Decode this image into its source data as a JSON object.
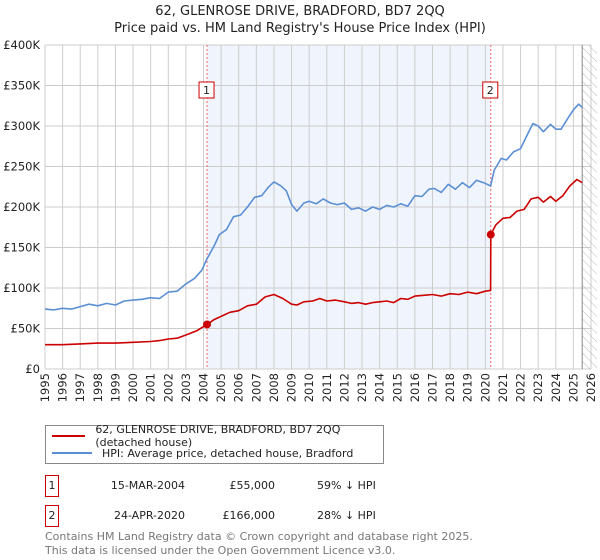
{
  "chart_data": {
    "type": "line",
    "title": "62, GLENROSE DRIVE, BRADFORD, BD7 2QQ",
    "subtitle": "Price paid vs. HM Land Registry's House Price Index (HPI)",
    "xlabel": "",
    "ylabel": "",
    "xlim": [
      1995,
      2026
    ],
    "ylim": [
      0,
      400000
    ],
    "x_ticks": [
      "1995",
      "1996",
      "1997",
      "1998",
      "1999",
      "2000",
      "2001",
      "2002",
      "2003",
      "2004",
      "2005",
      "2006",
      "2007",
      "2008",
      "2009",
      "2010",
      "2011",
      "2012",
      "2013",
      "2014",
      "2015",
      "2016",
      "2017",
      "2018",
      "2019",
      "2020",
      "2021",
      "2022",
      "2023",
      "2024",
      "2025",
      "2026"
    ],
    "y_ticks": [
      {
        "v": 0,
        "label": "£0"
      },
      {
        "v": 50000,
        "label": "£50K"
      },
      {
        "v": 100000,
        "label": "£100K"
      },
      {
        "v": 150000,
        "label": "£150K"
      },
      {
        "v": 200000,
        "label": "£200K"
      },
      {
        "v": 250000,
        "label": "£250K"
      },
      {
        "v": 300000,
        "label": "£300K"
      },
      {
        "v": 350000,
        "label": "£350K"
      },
      {
        "v": 400000,
        "label": "£400K"
      }
    ],
    "grid": true,
    "shaded_range": [
      2004.2,
      2020.31
    ],
    "forecast_hatch_from": 2025.5,
    "series": [
      {
        "name": "62, GLENROSE DRIVE, BRADFORD, BD7 2QQ (detached house)",
        "color": "#cc0000",
        "points": [
          [
            1995,
            30
          ],
          [
            1996,
            30
          ],
          [
            1997,
            31
          ],
          [
            1998,
            32
          ],
          [
            1999,
            32
          ],
          [
            2000,
            33
          ],
          [
            2001,
            34
          ],
          [
            2001.5,
            35
          ],
          [
            2002,
            37
          ],
          [
            2002.5,
            38
          ],
          [
            2003,
            42
          ],
          [
            2003.6,
            47
          ],
          [
            2004.2,
            55
          ],
          [
            2004.6,
            61
          ],
          [
            2005,
            65
          ],
          [
            2005.5,
            70
          ],
          [
            2006,
            72
          ],
          [
            2006.5,
            78
          ],
          [
            2007,
            80
          ],
          [
            2007.5,
            89
          ],
          [
            2008,
            92
          ],
          [
            2008.5,
            87
          ],
          [
            2009,
            80
          ],
          [
            2009.3,
            79
          ],
          [
            2009.7,
            83
          ],
          [
            2010.2,
            84
          ],
          [
            2010.6,
            87
          ],
          [
            2011,
            84
          ],
          [
            2011.5,
            85
          ],
          [
            2012,
            83
          ],
          [
            2012.4,
            81
          ],
          [
            2012.8,
            82
          ],
          [
            2013.2,
            80
          ],
          [
            2013.6,
            82
          ],
          [
            2014,
            83
          ],
          [
            2014.4,
            84
          ],
          [
            2014.8,
            82
          ],
          [
            2015.2,
            87
          ],
          [
            2015.6,
            86
          ],
          [
            2016,
            90
          ],
          [
            2016.5,
            91
          ],
          [
            2017,
            92
          ],
          [
            2017.5,
            90
          ],
          [
            2018,
            93
          ],
          [
            2018.5,
            92
          ],
          [
            2019,
            95
          ],
          [
            2019.5,
            93
          ],
          [
            2020,
            96
          ],
          [
            2020.3,
            97
          ],
          [
            2020.31,
            166
          ],
          [
            2020.6,
            178
          ],
          [
            2021,
            186
          ],
          [
            2021.4,
            187
          ],
          [
            2021.8,
            195
          ],
          [
            2022.2,
            197
          ],
          [
            2022.6,
            210
          ],
          [
            2023,
            212
          ],
          [
            2023.3,
            206
          ],
          [
            2023.7,
            213
          ],
          [
            2024,
            207
          ],
          [
            2024.4,
            214
          ],
          [
            2024.8,
            226
          ],
          [
            2025.2,
            234
          ],
          [
            2025.5,
            230
          ]
        ]
      },
      {
        "name": "HPI: Average price, detached house, Bradford",
        "color": "#5b8fd4",
        "points": [
          [
            1995,
            74
          ],
          [
            1995.5,
            73
          ],
          [
            1996,
            75
          ],
          [
            1996.5,
            74
          ],
          [
            1997,
            77
          ],
          [
            1997.5,
            80
          ],
          [
            1998,
            78
          ],
          [
            1998.5,
            81
          ],
          [
            1999,
            79
          ],
          [
            1999.5,
            84
          ],
          [
            2000,
            85
          ],
          [
            2000.5,
            86
          ],
          [
            2001,
            88
          ],
          [
            2001.5,
            87
          ],
          [
            2002,
            95
          ],
          [
            2002.5,
            96
          ],
          [
            2003,
            105
          ],
          [
            2003.5,
            112
          ],
          [
            2003.9,
            122
          ],
          [
            2004.2,
            136
          ],
          [
            2004.6,
            152
          ],
          [
            2004.9,
            166
          ],
          [
            2005.3,
            172
          ],
          [
            2005.7,
            188
          ],
          [
            2006.1,
            190
          ],
          [
            2006.5,
            200
          ],
          [
            2006.9,
            212
          ],
          [
            2007.3,
            214
          ],
          [
            2007.7,
            225
          ],
          [
            2008,
            231
          ],
          [
            2008.4,
            226
          ],
          [
            2008.7,
            220
          ],
          [
            2009,
            203
          ],
          [
            2009.3,
            195
          ],
          [
            2009.7,
            205
          ],
          [
            2010,
            207
          ],
          [
            2010.4,
            204
          ],
          [
            2010.8,
            210
          ],
          [
            2011.2,
            205
          ],
          [
            2011.6,
            203
          ],
          [
            2012,
            205
          ],
          [
            2012.4,
            197
          ],
          [
            2012.8,
            199
          ],
          [
            2013.2,
            195
          ],
          [
            2013.6,
            200
          ],
          [
            2014,
            197
          ],
          [
            2014.4,
            202
          ],
          [
            2014.8,
            200
          ],
          [
            2015.2,
            204
          ],
          [
            2015.6,
            201
          ],
          [
            2016,
            214
          ],
          [
            2016.4,
            213
          ],
          [
            2016.8,
            222
          ],
          [
            2017.1,
            223
          ],
          [
            2017.5,
            218
          ],
          [
            2017.9,
            228
          ],
          [
            2018.3,
            222
          ],
          [
            2018.7,
            230
          ],
          [
            2019.1,
            224
          ],
          [
            2019.5,
            233
          ],
          [
            2019.9,
            230
          ],
          [
            2020.3,
            226
          ],
          [
            2020.5,
            245
          ],
          [
            2020.9,
            260
          ],
          [
            2021.2,
            258
          ],
          [
            2021.6,
            268
          ],
          [
            2022,
            272
          ],
          [
            2022.4,
            290
          ],
          [
            2022.7,
            303
          ],
          [
            2023,
            300
          ],
          [
            2023.3,
            293
          ],
          [
            2023.7,
            302
          ],
          [
            2024,
            296
          ],
          [
            2024.3,
            296
          ],
          [
            2024.7,
            310
          ],
          [
            2025,
            320
          ],
          [
            2025.3,
            327
          ],
          [
            2025.5,
            323
          ]
        ]
      }
    ],
    "value_unit": "thousands GBP",
    "sales": [
      {
        "id": "1",
        "x": 2004.2,
        "value": 55000,
        "date": "15-MAR-2004",
        "price": "£55,000",
        "hpi": "59% ↓ HPI"
      },
      {
        "id": "2",
        "x": 2020.31,
        "value": 166000,
        "date": "24-APR-2020",
        "price": "£166,000",
        "hpi": "28% ↓ HPI"
      }
    ]
  },
  "legend": {
    "property": "62, GLENROSE DRIVE, BRADFORD, BD7 2QQ (detached house)",
    "hpi": "HPI: Average price, detached house, Bradford"
  },
  "footer": {
    "line1": "Contains HM Land Registry data © Crown copyright and database right 2025.",
    "line2": "This data is licensed under the Open Government Licence v3.0."
  }
}
